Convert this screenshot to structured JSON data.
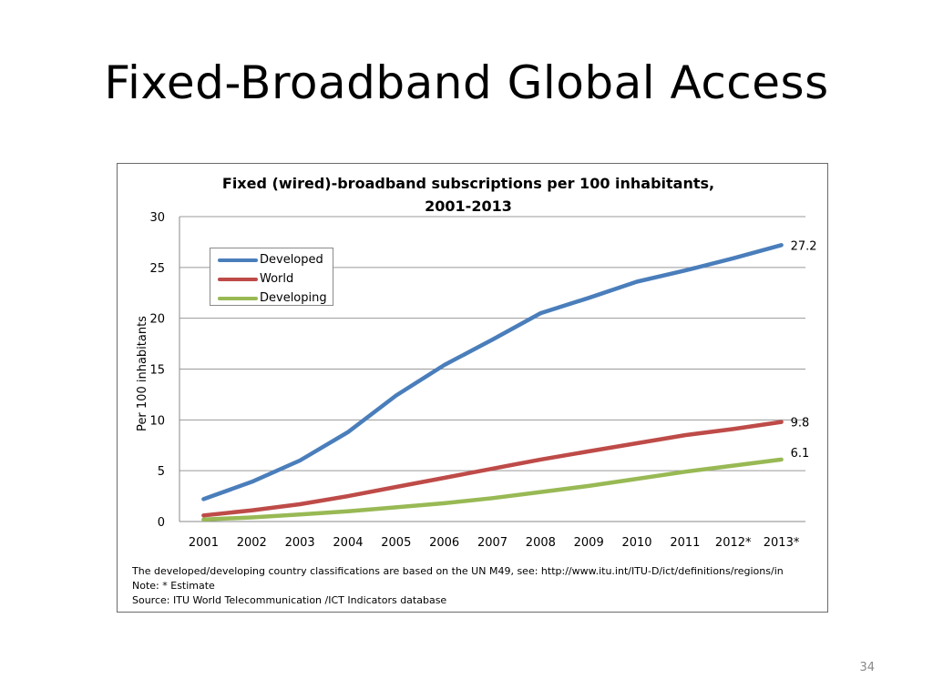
{
  "slide": {
    "title": "Fixed-Broadband Global Access",
    "page_number": "34"
  },
  "chart_data": {
    "type": "line",
    "title_lines": [
      "Fixed (wired)-broadband subscriptions per 100 inhabitants,",
      "2001-2013"
    ],
    "xlabel": "",
    "ylabel": "Per 100 inhabitants",
    "ylim": [
      0,
      30
    ],
    "yticks": [
      0,
      5,
      10,
      15,
      20,
      25,
      30
    ],
    "categories": [
      "2001",
      "2002",
      "2003",
      "2004",
      "2005",
      "2006",
      "2007",
      "2008",
      "2009",
      "2010",
      "2011",
      "2012*",
      "2013*"
    ],
    "grid": true,
    "legend_position": "top-left",
    "series": [
      {
        "name": "Developed",
        "color": "#4a7ebb",
        "values": [
          2.2,
          3.9,
          6.0,
          8.8,
          12.4,
          15.4,
          17.9,
          20.5,
          22.0,
          23.6,
          24.7,
          25.9,
          27.2
        ],
        "end_label": "27.2"
      },
      {
        "name": "World",
        "color": "#be4b48",
        "values": [
          0.6,
          1.1,
          1.7,
          2.5,
          3.4,
          4.3,
          5.2,
          6.1,
          6.9,
          7.7,
          8.5,
          9.1,
          9.8
        ],
        "end_label": "9.8"
      },
      {
        "name": "Developing",
        "color": "#98b954",
        "values": [
          0.2,
          0.4,
          0.7,
          1.0,
          1.4,
          1.8,
          2.3,
          2.9,
          3.5,
          4.2,
          4.9,
          5.5,
          6.1
        ],
        "end_label": "6.1"
      }
    ],
    "notes": [
      "The developed/developing country classifications are based on the UN M49, see: http://www.itu.int/ITU-D/ict/definitions/regions/in",
      "Note: * Estimate",
      "Source:  ITU World Telecommunication /ICT Indicators database"
    ]
  }
}
